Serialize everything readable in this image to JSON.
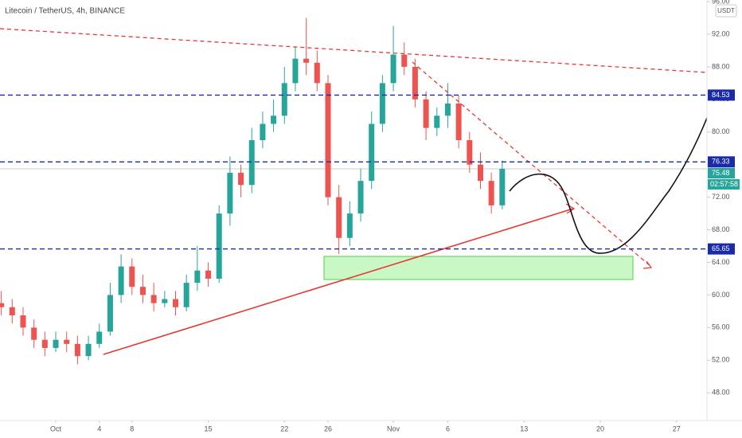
{
  "chart_data": {
    "type": "candlestick",
    "title": "Litecoin / TetherUS, 4h, BINANCE",
    "currency": "USDT",
    "x": [
      -5,
      -4,
      -3,
      -2,
      -1,
      0,
      1,
      2,
      3,
      4,
      5,
      6,
      7,
      8,
      9,
      10,
      11,
      12,
      13,
      14,
      15,
      16,
      17,
      18,
      19,
      20,
      21,
      22,
      23,
      24,
      25,
      26,
      27,
      28,
      29,
      30,
      31,
      32,
      33,
      34,
      35,
      36,
      37,
      38,
      39,
      40,
      41
    ],
    "open": [
      59,
      58.5,
      57.5,
      56,
      54.5,
      53.5,
      54.5,
      54,
      52.5,
      54,
      55.5,
      60,
      63.5,
      61,
      60,
      59,
      59.5,
      58.5,
      61.5,
      63,
      62,
      70,
      75,
      73.5,
      79,
      81,
      82,
      86,
      89,
      88.5,
      86,
      72,
      67,
      70,
      74,
      81,
      86,
      89.5,
      88,
      84,
      80.5,
      82,
      83.5,
      79,
      76,
      74,
      71
    ],
    "high": [
      60.5,
      59.5,
      58.5,
      57,
      55.5,
      55.5,
      55.5,
      55,
      55,
      56.5,
      61.5,
      65,
      64.5,
      62.5,
      61.5,
      60.5,
      60.5,
      62.5,
      66,
      64,
      71,
      77,
      76,
      80.5,
      82.5,
      84,
      88,
      90.5,
      94,
      90,
      87,
      73.5,
      71.5,
      75.5,
      82.5,
      87,
      93,
      91,
      89,
      85,
      83,
      86,
      84.5,
      80,
      77.5,
      75,
      76.5
    ],
    "low": [
      57.5,
      56.5,
      55,
      53.5,
      52.5,
      53,
      53,
      51.5,
      52,
      53.5,
      55,
      59,
      60,
      59,
      58,
      58.5,
      57.5,
      58,
      60.5,
      61,
      61.5,
      68.5,
      72,
      72.5,
      78,
      80,
      81,
      85,
      87,
      85,
      71,
      65,
      66,
      69,
      73,
      80,
      85,
      87,
      83,
      79,
      79.5,
      80.5,
      78,
      75,
      73,
      70,
      70.5
    ],
    "close": [
      58.5,
      57.5,
      56,
      54.5,
      53.5,
      54.5,
      54,
      52.5,
      54,
      55.5,
      60,
      63.5,
      61,
      60,
      59,
      59.5,
      58.5,
      61.5,
      63,
      62,
      70,
      75,
      73.5,
      79,
      81,
      82,
      86,
      89,
      88.5,
      86,
      72,
      67,
      70,
      74,
      81,
      86,
      89.5,
      88,
      84,
      80.5,
      82,
      83.5,
      79,
      76,
      74,
      71,
      75.48
    ],
    "up_color": "#26a69a",
    "down_color": "#ef5350",
    "xlim": [
      -5.12,
      59.8
    ],
    "xticks": [
      {
        "value": 0,
        "label": "Oct"
      },
      4,
      {
        "value": 7,
        "label": "8"
      },
      {
        "value": 14,
        "label": "15"
      },
      {
        "value": 21,
        "label": "22"
      },
      {
        "value": 25,
        "label": "26"
      },
      {
        "value": 31,
        "label": "Nov"
      },
      {
        "value": 36,
        "label": "6"
      },
      {
        "value": 43,
        "label": "13"
      },
      {
        "value": 50,
        "label": "20"
      },
      {
        "value": 57,
        "label": "27"
      }
    ],
    "ylim": [
      44.6,
      96.2
    ],
    "yticks": [
      {
        "value": 48,
        "label": "48.00"
      },
      {
        "value": 52,
        "label": "52.00"
      },
      {
        "value": 56,
        "label": "56.00"
      },
      {
        "value": 60,
        "label": "60.00"
      },
      {
        "value": 64,
        "label": "64.00"
      },
      {
        "value": 68,
        "label": "68.00"
      },
      {
        "value": 72,
        "label": "72.00"
      },
      {
        "value": 76,
        "label": "76.00"
      },
      {
        "value": 80,
        "label": "80.00"
      },
      {
        "value": 84,
        "label": "84.00"
      },
      {
        "value": 88,
        "label": "88.00"
      },
      {
        "value": 92,
        "label": "92.00"
      },
      {
        "value": 96,
        "label": "96.00"
      }
    ],
    "levels": [
      84.53,
      76.33,
      65.65
    ],
    "level_color": "#1a2aa8",
    "last_price": 75.48,
    "countdown": "02:57:58"
  }
}
